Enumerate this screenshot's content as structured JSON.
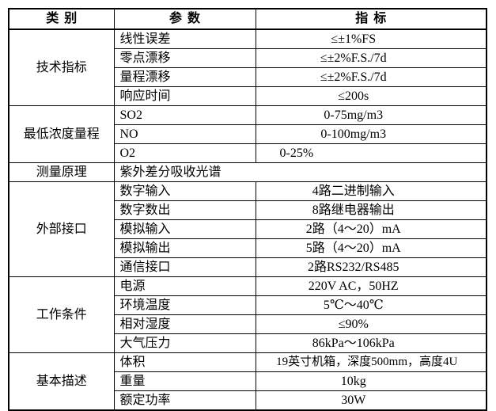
{
  "colors": {
    "background": "#ffffff",
    "border": "#000000",
    "text": "#000000"
  },
  "table": {
    "headers": [
      "类别",
      "参数",
      "指标"
    ],
    "sections": [
      {
        "category": "技术指标",
        "rows": [
          [
            "线性误差",
            "≤±1%FS"
          ],
          [
            "零点漂移",
            "≤±2%F.S./7d"
          ],
          [
            "量程漂移",
            "≤±2%F.S./7d"
          ],
          [
            "响应时间",
            "≤200s"
          ]
        ]
      },
      {
        "category": "最低浓度量程",
        "rows": [
          [
            "SO2",
            "0-75mg/m3"
          ],
          [
            "NO",
            "0-100mg/m3"
          ],
          [
            "O2",
            "0-25%"
          ]
        ]
      },
      {
        "category": "测量原理",
        "merged": "紫外差分吸收光谱"
      },
      {
        "category": "外部接口",
        "rows": [
          [
            "数字输入",
            "4路二进制输入"
          ],
          [
            "数字数出",
            "8路继电器输出"
          ],
          [
            "模拟输入",
            "2路（4～20）mA"
          ],
          [
            "模拟输出",
            "5路（4～20）mA"
          ],
          [
            "通信接口",
            "2路RS232/RS485"
          ]
        ]
      },
      {
        "category": "工作条件",
        "rows": [
          [
            "电源",
            "220V AC，50HZ"
          ],
          [
            "环境温度",
            "5℃～40℃"
          ],
          [
            "相对湿度",
            "≤90%"
          ],
          [
            "大气压力",
            "86kPa～106kPa"
          ]
        ]
      },
      {
        "category": "基本描述",
        "rows": [
          [
            "体积",
            "19英寸机箱，深度500mm，高度4U"
          ],
          [
            "重量",
            "10kg"
          ],
          [
            "额定功率",
            "30W"
          ]
        ]
      }
    ]
  }
}
